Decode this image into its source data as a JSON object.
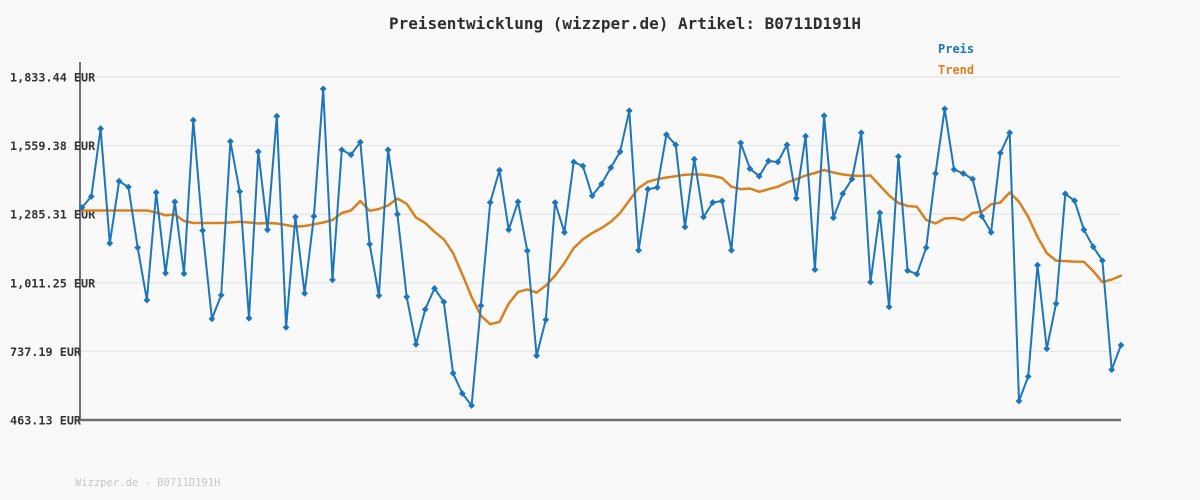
{
  "title": "Preisentwicklung (wizzper.de) Artikel: B0711D191H",
  "footer": "Wizzper.de - B0711D191H",
  "colors": {
    "background": "#f9f9f9",
    "gridline": "#e6e6e6",
    "axis": "#6f6f6f",
    "title_text": "#2e2e2e",
    "tick_text": "#333333",
    "watermark_text": "#c6c6c6",
    "preis": "#1d76b9",
    "trend": "#d9811e"
  },
  "chart_data": {
    "type": "line",
    "title": "Preisentwicklung (wizzper.de) Artikel: B0711D191H",
    "unit": "EUR",
    "grid": true,
    "legend_position": "top-right",
    "xlabel": "",
    "ylabel": "",
    "x_axis": {
      "tick_labels_visible": false
    },
    "y_axis": {
      "range": [
        463.13,
        1833.44
      ],
      "ticks": [
        {
          "label": "1,833.44 EUR",
          "value": 1833.44
        },
        {
          "label": "1,559.38 EUR",
          "value": 1559.38
        },
        {
          "label": "1,285.31 EUR",
          "value": 1285.31
        },
        {
          "label": "1,011.25 EUR",
          "value": 1011.25
        },
        {
          "label": "737.19 EUR",
          "value": 737.19
        },
        {
          "label": "463.13 EUR",
          "value": 463.13
        }
      ]
    },
    "series": [
      {
        "name": "Preis",
        "color": "#1d76b9",
        "marker": "diamond",
        "line_width": 2,
        "values": [
          1312,
          1356,
          1627,
          1169,
          1417,
          1394,
          1152,
          942,
          1372,
          1050,
          1335,
          1048,
          1661,
          1220,
          867,
          962,
          1576,
          1376,
          870,
          1535,
          1223,
          1677,
          833,
          1274,
          969,
          1277,
          1786,
          1023,
          1542,
          1523,
          1573,
          1166,
          960,
          1542,
          1285,
          955,
          765,
          905,
          989,
          935,
          650,
          569,
          521,
          920,
          1332,
          1461,
          1223,
          1335,
          1139,
          720,
          864,
          1332,
          1213,
          1494,
          1478,
          1359,
          1406,
          1471,
          1535,
          1699,
          1141,
          1385,
          1392,
          1603,
          1562,
          1234,
          1505,
          1274,
          1332,
          1338,
          1141,
          1570,
          1467,
          1437,
          1498,
          1494,
          1562,
          1349,
          1597,
          1064,
          1679,
          1271,
          1367,
          1426,
          1611,
          1014,
          1291,
          915,
          1516,
          1060,
          1046,
          1152,
          1448,
          1706,
          1464,
          1448,
          1426,
          1277,
          1213,
          1530,
          1611,
          539,
          637,
          1082,
          748,
          928,
          1367,
          1339,
          1223,
          1155,
          1100,
          664,
          762
        ]
      },
      {
        "name": "Trend",
        "color": "#d9811e",
        "marker": "none",
        "line_width": 2.5,
        "values": [
          1300,
          1300,
          1300,
          1300,
          1300,
          1300,
          1300,
          1300,
          1292,
          1281,
          1284,
          1258,
          1250,
          1250,
          1250,
          1250,
          1252,
          1255,
          1252,
          1248,
          1250,
          1248,
          1242,
          1235,
          1238,
          1245,
          1252,
          1262,
          1290,
          1300,
          1338,
          1299,
          1306,
          1320,
          1348,
          1327,
          1272,
          1250,
          1215,
          1185,
          1130,
          1045,
          955,
          880,
          846,
          855,
          928,
          975,
          985,
          972,
          1000,
          1040,
          1090,
          1150,
          1185,
          1210,
          1230,
          1255,
          1290,
          1340,
          1390,
          1415,
          1425,
          1432,
          1437,
          1443,
          1445,
          1443,
          1438,
          1430,
          1395,
          1385,
          1388,
          1375,
          1385,
          1395,
          1412,
          1425,
          1440,
          1450,
          1462,
          1452,
          1444,
          1440,
          1438,
          1440,
          1400,
          1360,
          1330,
          1318,
          1315,
          1262,
          1248,
          1268,
          1270,
          1262,
          1290,
          1295,
          1325,
          1332,
          1372,
          1335,
          1275,
          1195,
          1130,
          1100,
          1098,
          1096,
          1095,
          1058,
          1014,
          1024,
          1040
        ]
      }
    ]
  }
}
